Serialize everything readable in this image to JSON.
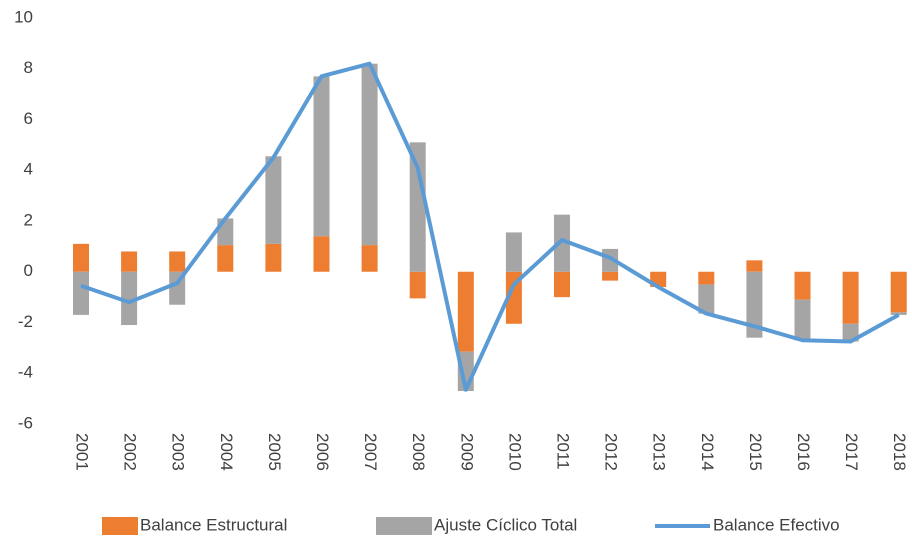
{
  "chart_data": {
    "type": "bar",
    "stacked": true,
    "categories": [
      "2001",
      "2002",
      "2003",
      "2004",
      "2005",
      "2006",
      "2007",
      "2008",
      "2009",
      "2010",
      "2011",
      "2012",
      "2013",
      "2014",
      "2015",
      "2016",
      "2017",
      "2018"
    ],
    "series": [
      {
        "name": "Balance Estructural",
        "type": "bar",
        "color": "#ed7d31",
        "values": [
          1.1,
          0.8,
          0.8,
          1.05,
          1.1,
          1.4,
          1.05,
          -1.05,
          -3.15,
          -2.05,
          -1.0,
          -0.35,
          -0.6,
          -0.5,
          0.45,
          -1.1,
          -2.05,
          -1.6
        ]
      },
      {
        "name": "Ajuste Cíclico Total",
        "type": "bar",
        "color": "#a5a5a5",
        "values": [
          -1.7,
          -2.1,
          -1.3,
          1.05,
          3.45,
          6.3,
          7.15,
          5.1,
          -1.55,
          1.55,
          2.25,
          0.9,
          0,
          -1.15,
          -2.6,
          -1.6,
          -0.7,
          -0.1
        ]
      },
      {
        "name": "Balance Efectivo",
        "type": "line",
        "color": "#5b9bd5",
        "values": [
          -0.55,
          -1.2,
          -0.45,
          2.1,
          4.5,
          7.7,
          8.2,
          4.1,
          -4.65,
          -0.5,
          1.25,
          0.55,
          -0.6,
          -1.65,
          -2.15,
          -2.7,
          -2.75,
          -1.7
        ]
      }
    ],
    "ylim": [
      -6,
      10
    ],
    "yticks": [
      -6,
      -4,
      -2,
      0,
      2,
      4,
      6,
      8,
      10
    ],
    "grid": false,
    "legend": "bottom"
  }
}
